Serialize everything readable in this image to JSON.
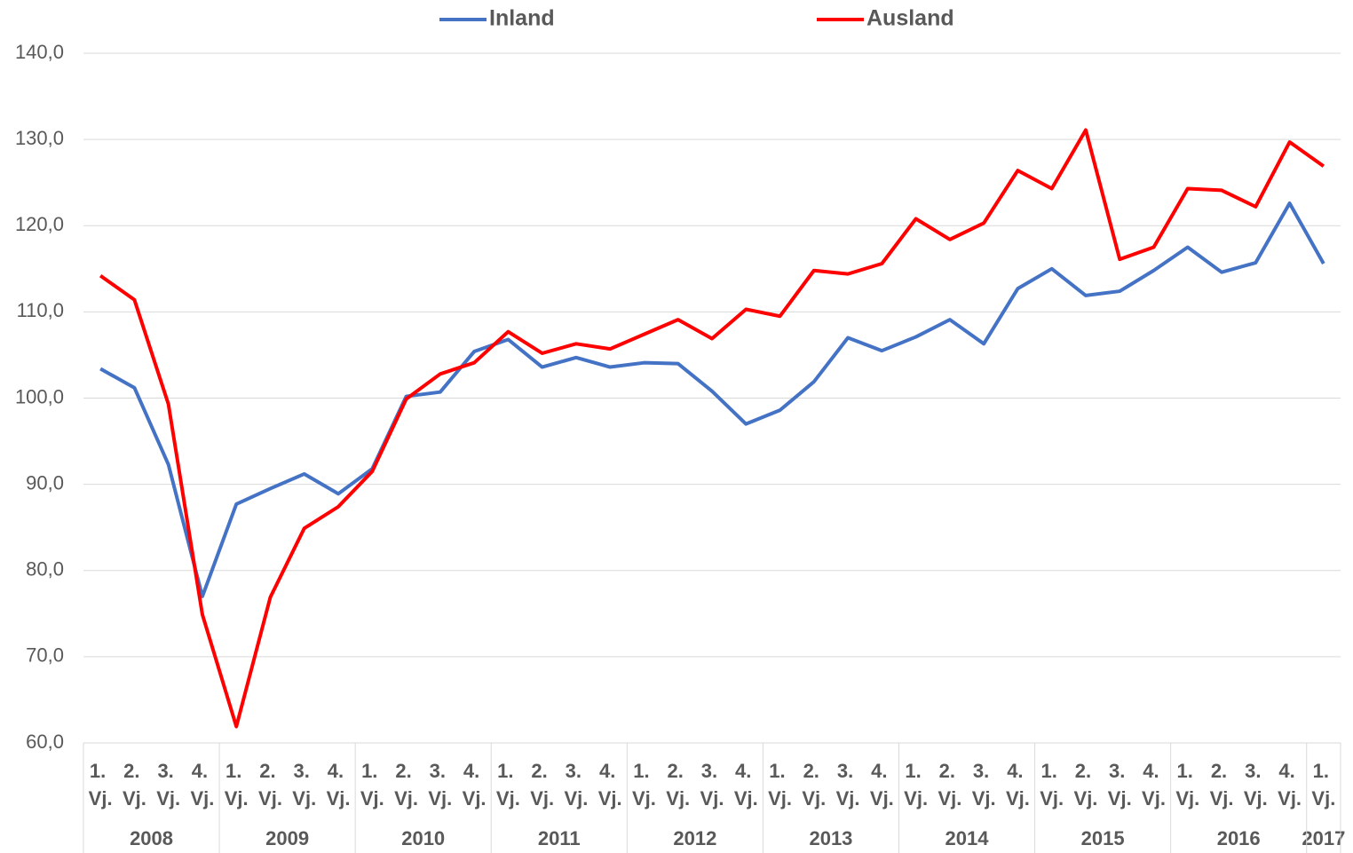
{
  "chart_data": {
    "type": "line",
    "categories": [
      "1. Vj.",
      "2. Vj.",
      "3. Vj.",
      "4. Vj.",
      "1. Vj.",
      "2. Vj.",
      "3. Vj.",
      "4. Vj.",
      "1. Vj.",
      "2. Vj.",
      "3. Vj.",
      "4. Vj.",
      "1. Vj.",
      "2. Vj.",
      "3. Vj.",
      "4. Vj.",
      "1. Vj.",
      "2. Vj.",
      "3. Vj.",
      "4. Vj.",
      "1. Vj.",
      "2. Vj.",
      "3. Vj.",
      "4. Vj.",
      "1. Vj.",
      "2. Vj.",
      "3. Vj.",
      "4. Vj.",
      "1. Vj.",
      "2. Vj.",
      "3. Vj.",
      "4. Vj.",
      "1. Vj.",
      "2. Vj.",
      "3. Vj.",
      "4. Vj.",
      "1. Vj."
    ],
    "x_groups": [
      "2008",
      "2009",
      "2010",
      "2011",
      "2012",
      "2013",
      "2014",
      "2015",
      "2016",
      "2017"
    ],
    "series": [
      {
        "name": "Inland",
        "color": "#4472c4",
        "values": [
          103.4,
          101.2,
          92.3,
          77.0,
          87.7,
          89.5,
          91.2,
          88.9,
          91.8,
          100.2,
          100.7,
          105.4,
          106.8,
          103.6,
          104.7,
          103.6,
          104.1,
          104.0,
          100.8,
          97.0,
          98.6,
          101.9,
          107.0,
          105.5,
          107.1,
          109.1,
          106.3,
          112.7,
          115.0,
          111.9,
          112.4,
          114.8,
          117.5,
          114.6,
          115.7,
          122.6,
          115.6
        ]
      },
      {
        "name": "Ausland",
        "color": "#ff0000",
        "values": [
          114.2,
          111.4,
          99.3,
          74.9,
          61.9,
          76.9,
          84.9,
          87.4,
          91.5,
          99.9,
          102.8,
          104.1,
          107.7,
          105.2,
          106.3,
          105.7,
          107.4,
          109.1,
          106.9,
          110.3,
          109.5,
          114.8,
          114.4,
          115.6,
          120.8,
          118.4,
          120.3,
          126.4,
          124.3,
          131.1,
          116.1,
          117.5,
          124.3,
          124.1,
          122.2,
          129.7,
          126.9
        ]
      }
    ],
    "ylim": [
      60,
      140
    ],
    "yticks": [
      {
        "value": 60,
        "label": "60,0"
      },
      {
        "value": 70,
        "label": "70,0"
      },
      {
        "value": 80,
        "label": "80,0"
      },
      {
        "value": 90,
        "label": "90,0"
      },
      {
        "value": 100,
        "label": "100,0"
      },
      {
        "value": 110,
        "label": "110,0"
      },
      {
        "value": 120,
        "label": "120,0"
      },
      {
        "value": 130,
        "label": "130,0"
      },
      {
        "value": 140,
        "label": "140,0"
      }
    ],
    "grid": true,
    "legend": "top"
  }
}
